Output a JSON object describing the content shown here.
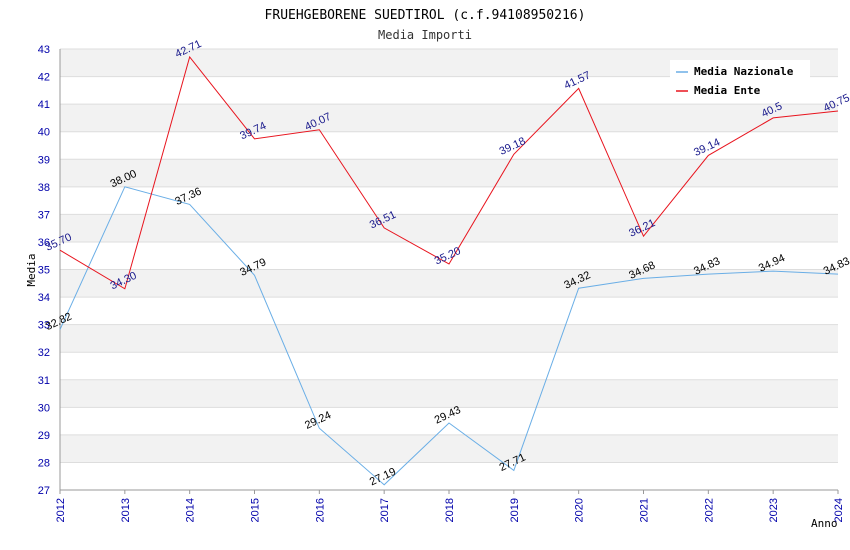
{
  "chart_data": {
    "type": "line",
    "title": "FRUEHGEBORENE SUEDTIROL (c.f.94108950216)",
    "subtitle": "Media Importi",
    "xlabel": "Anno",
    "ylabel": "Media",
    "ylim": [
      27,
      43
    ],
    "yticks": [
      27,
      28,
      29,
      30,
      31,
      32,
      33,
      34,
      35,
      36,
      37,
      38,
      39,
      40,
      41,
      42,
      43
    ],
    "x": [
      "2012",
      "2013",
      "2014",
      "2015",
      "2016",
      "2017",
      "2018",
      "2019",
      "2020",
      "2021",
      "2022",
      "2023",
      "2024"
    ],
    "series": [
      {
        "name": "Media Nazionale",
        "color": "#6aaee6",
        "values": [
          32.82,
          38.0,
          37.36,
          34.79,
          29.24,
          27.19,
          29.43,
          27.71,
          34.32,
          34.68,
          34.83,
          34.94,
          34.83
        ],
        "labels": [
          "32.82",
          "38.00",
          "37.36",
          "34.79",
          "29.24",
          "27.19",
          "29.43",
          "27.71",
          "34.32",
          "34.68",
          "34.83",
          "34.94",
          "34.83"
        ]
      },
      {
        "name": "Media Ente",
        "color": "#e8141e",
        "values": [
          35.7,
          34.3,
          42.71,
          39.74,
          40.07,
          36.51,
          35.2,
          39.18,
          41.57,
          36.21,
          39.14,
          40.5,
          40.75
        ],
        "labels": [
          "35.70",
          "34.30",
          "42.71",
          "39.74",
          "40.07",
          "36.51",
          "35.20",
          "39.18",
          "41.57",
          "36.21",
          "39.14",
          "40.5",
          "40.75"
        ]
      }
    ],
    "legend": "top-right",
    "grid": true
  }
}
